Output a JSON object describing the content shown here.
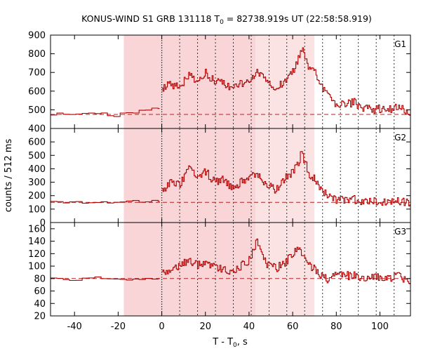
{
  "title": "KONUS-WIND S1 GRB 131118 T",
  "title_sub": "0",
  "title_rest": " = 82738.919s UT (22:58:58.919)",
  "xlabel_main": "T - T",
  "xlabel_sub": "0",
  "xlabel_rest": ", s",
  "ylabel": "counts / 512 ms",
  "chart_data": {
    "type": "line",
    "xlim": [
      -51,
      114
    ],
    "xticks": [
      -40,
      -20,
      0,
      20,
      40,
      60,
      80,
      100
    ],
    "shaded_intervals": [
      {
        "from": -17.4,
        "to": 0,
        "shade": "light"
      },
      {
        "from": 0,
        "to": 43,
        "shade": "light"
      },
      {
        "from": 43,
        "to": 70,
        "shade": "lighter"
      }
    ],
    "vertical_lines": [
      0,
      8.2,
      16.4,
      24.6,
      32.8,
      41.0,
      49.2,
      57.3,
      65.5,
      73.7,
      81.9,
      90.1,
      98.3,
      106.5
    ],
    "panels": [
      {
        "label": "G1",
        "ylim": [
          400,
          900
        ],
        "yticks": [
          400,
          500,
          600,
          700,
          800,
          900
        ],
        "background": 475,
        "pre_trigger": {
          "x_start": -51,
          "x_end": -1,
          "level": 480,
          "points": [
            [
              -51,
              478
            ],
            [
              -46,
              476
            ],
            [
              -40,
              478
            ],
            [
              -33,
              484
            ],
            [
              -27,
              476
            ],
            [
              -22,
              470
            ],
            [
              -18,
              482
            ],
            [
              -12,
              490
            ],
            [
              -7,
              503
            ],
            [
              -3,
              508
            ],
            [
              -1,
              508
            ]
          ]
        },
        "post_trigger": [
          [
            0,
            608
          ],
          [
            4,
            640
          ],
          [
            8,
            620
          ],
          [
            12,
            690
          ],
          [
            16,
            660
          ],
          [
            20,
            700
          ],
          [
            24,
            650
          ],
          [
            28,
            640
          ],
          [
            32,
            610
          ],
          [
            36,
            640
          ],
          [
            40,
            660
          ],
          [
            44,
            700
          ],
          [
            48,
            640
          ],
          [
            52,
            610
          ],
          [
            56,
            650
          ],
          [
            60,
            710
          ],
          [
            62,
            760
          ],
          [
            64,
            820
          ],
          [
            66,
            780
          ],
          [
            68,
            700
          ],
          [
            70,
            720
          ],
          [
            72,
            650
          ],
          [
            74,
            610
          ],
          [
            76,
            590
          ],
          [
            78,
            560
          ],
          [
            80,
            520
          ],
          [
            84,
            530
          ],
          [
            88,
            540
          ],
          [
            92,
            510
          ],
          [
            96,
            500
          ],
          [
            100,
            505
          ],
          [
            104,
            500
          ],
          [
            108,
            515
          ],
          [
            112,
            490
          ]
        ]
      },
      {
        "label": "G2",
        "ylim": [
          0,
          700
        ],
        "yticks": [
          0,
          100,
          200,
          300,
          400,
          500,
          600
        ],
        "background": 150,
        "pre_trigger": {
          "x_start": -51,
          "x_end": -1,
          "level": 150,
          "points": [
            [
              -51,
              150
            ],
            [
              -40,
              148
            ],
            [
              -30,
              152
            ],
            [
              -20,
              155
            ],
            [
              -10,
              158
            ],
            [
              -1,
              158
            ]
          ]
        },
        "post_trigger": [
          [
            0,
            240
          ],
          [
            4,
            300
          ],
          [
            8,
            280
          ],
          [
            12,
            400
          ],
          [
            16,
            350
          ],
          [
            20,
            380
          ],
          [
            24,
            300
          ],
          [
            28,
            320
          ],
          [
            32,
            260
          ],
          [
            36,
            300
          ],
          [
            40,
            330
          ],
          [
            44,
            360
          ],
          [
            48,
            280
          ],
          [
            52,
            240
          ],
          [
            56,
            320
          ],
          [
            60,
            380
          ],
          [
            62,
            430
          ],
          [
            64,
            520
          ],
          [
            66,
            430
          ],
          [
            68,
            340
          ],
          [
            70,
            330
          ],
          [
            72,
            260
          ],
          [
            74,
            220
          ],
          [
            76,
            210
          ],
          [
            78,
            180
          ],
          [
            80,
            170
          ],
          [
            84,
            165
          ],
          [
            88,
            170
          ],
          [
            92,
            160
          ],
          [
            96,
            158
          ],
          [
            100,
            160
          ],
          [
            104,
            155
          ],
          [
            108,
            158
          ],
          [
            112,
            150
          ]
        ]
      },
      {
        "label": "G3",
        "ylim": [
          20,
          170
        ],
        "yticks": [
          20,
          40,
          60,
          80,
          100,
          120,
          140,
          160
        ],
        "background": 80,
        "pre_trigger": {
          "x_start": -51,
          "x_end": -1,
          "level": 80,
          "points": [
            [
              -51,
              80
            ],
            [
              -40,
              78
            ],
            [
              -30,
              82
            ],
            [
              -20,
              78
            ],
            [
              -10,
              80
            ],
            [
              -1,
              80
            ]
          ]
        },
        "post_trigger": [
          [
            0,
            88
          ],
          [
            4,
            96
          ],
          [
            8,
            100
          ],
          [
            12,
            108
          ],
          [
            16,
            102
          ],
          [
            20,
            104
          ],
          [
            24,
            100
          ],
          [
            28,
            96
          ],
          [
            32,
            92
          ],
          [
            36,
            100
          ],
          [
            40,
            110
          ],
          [
            42,
            130
          ],
          [
            44,
            140
          ],
          [
            46,
            115
          ],
          [
            48,
            104
          ],
          [
            52,
            96
          ],
          [
            56,
            104
          ],
          [
            60,
            122
          ],
          [
            62,
            130
          ],
          [
            64,
            118
          ],
          [
            66,
            106
          ],
          [
            68,
            100
          ],
          [
            70,
            96
          ],
          [
            72,
            90
          ],
          [
            74,
            82
          ],
          [
            76,
            78
          ],
          [
            80,
            86
          ],
          [
            84,
            84
          ],
          [
            88,
            86
          ],
          [
            92,
            82
          ],
          [
            96,
            80
          ],
          [
            100,
            82
          ],
          [
            104,
            80
          ],
          [
            108,
            84
          ],
          [
            112,
            78
          ]
        ]
      }
    ]
  }
}
